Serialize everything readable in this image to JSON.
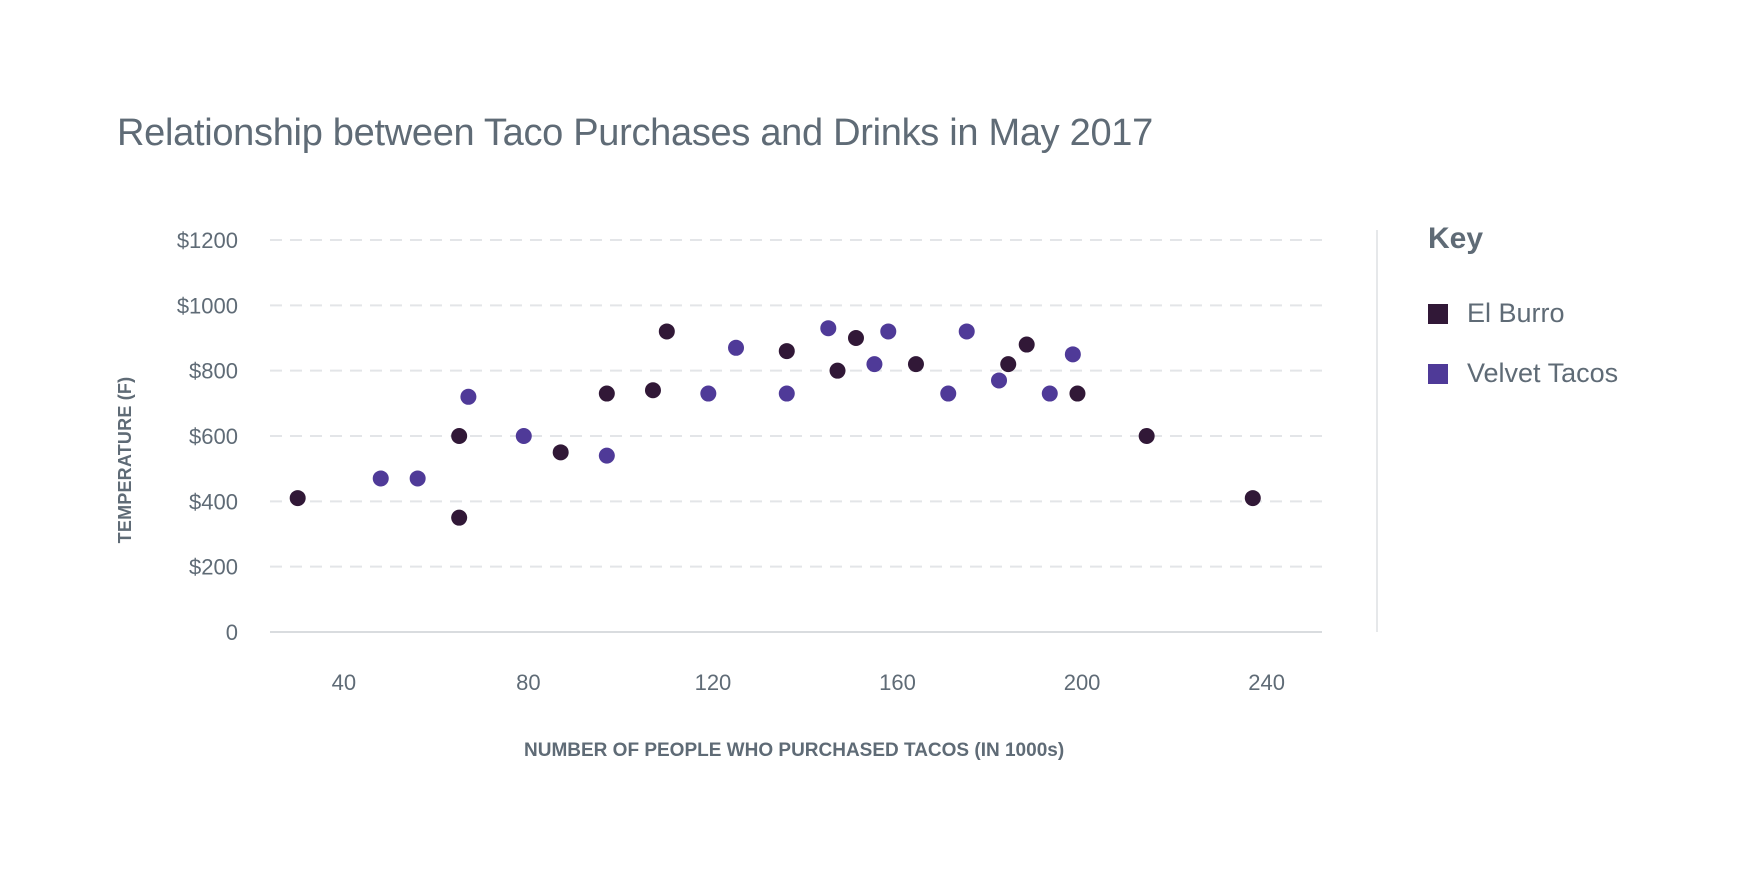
{
  "chart_data": {
    "type": "scatter",
    "title": "Relationship between Taco Purchases and Drinks in May 2017",
    "xlabel": "NUMBER OF PEOPLE WHO PURCHASED TACOS (IN 1000s)",
    "ylabel": "TEMPERATURE (F)",
    "xlim": [
      24,
      252
    ],
    "ylim": [
      0,
      1200
    ],
    "x_ticks": [
      40,
      80,
      120,
      160,
      200,
      240
    ],
    "x_tick_labels": [
      "40",
      "80",
      "120",
      "160",
      "200",
      "240"
    ],
    "y_ticks": [
      0,
      200,
      400,
      600,
      800,
      1000,
      1200
    ],
    "y_tick_labels": [
      "0",
      "$200",
      "$400",
      "$600",
      "$800",
      "$1000",
      "$1200"
    ],
    "grid": "horizontal dashed",
    "legend_position": "right",
    "legend_title": "Key",
    "series": [
      {
        "name": "El Burro",
        "color": "#311837",
        "points": [
          {
            "x": 30,
            "y": 410
          },
          {
            "x": 65,
            "y": 350
          },
          {
            "x": 65,
            "y": 600
          },
          {
            "x": 87,
            "y": 550
          },
          {
            "x": 97,
            "y": 730
          },
          {
            "x": 107,
            "y": 740
          },
          {
            "x": 110,
            "y": 920
          },
          {
            "x": 136,
            "y": 860
          },
          {
            "x": 147,
            "y": 800
          },
          {
            "x": 151,
            "y": 900
          },
          {
            "x": 164,
            "y": 820
          },
          {
            "x": 184,
            "y": 820
          },
          {
            "x": 188,
            "y": 880
          },
          {
            "x": 199,
            "y": 730
          },
          {
            "x": 214,
            "y": 600
          },
          {
            "x": 237,
            "y": 410
          }
        ]
      },
      {
        "name": "Velvet Tacos",
        "color": "#4f3a98",
        "points": [
          {
            "x": 48,
            "y": 470
          },
          {
            "x": 56,
            "y": 470
          },
          {
            "x": 67,
            "y": 720
          },
          {
            "x": 79,
            "y": 600
          },
          {
            "x": 97,
            "y": 540
          },
          {
            "x": 119,
            "y": 730
          },
          {
            "x": 125,
            "y": 870
          },
          {
            "x": 136,
            "y": 730
          },
          {
            "x": 145,
            "y": 930
          },
          {
            "x": 155,
            "y": 820
          },
          {
            "x": 158,
            "y": 920
          },
          {
            "x": 171,
            "y": 730
          },
          {
            "x": 175,
            "y": 920
          },
          {
            "x": 182,
            "y": 770
          },
          {
            "x": 193,
            "y": 730
          },
          {
            "x": 198,
            "y": 850
          }
        ]
      }
    ]
  }
}
